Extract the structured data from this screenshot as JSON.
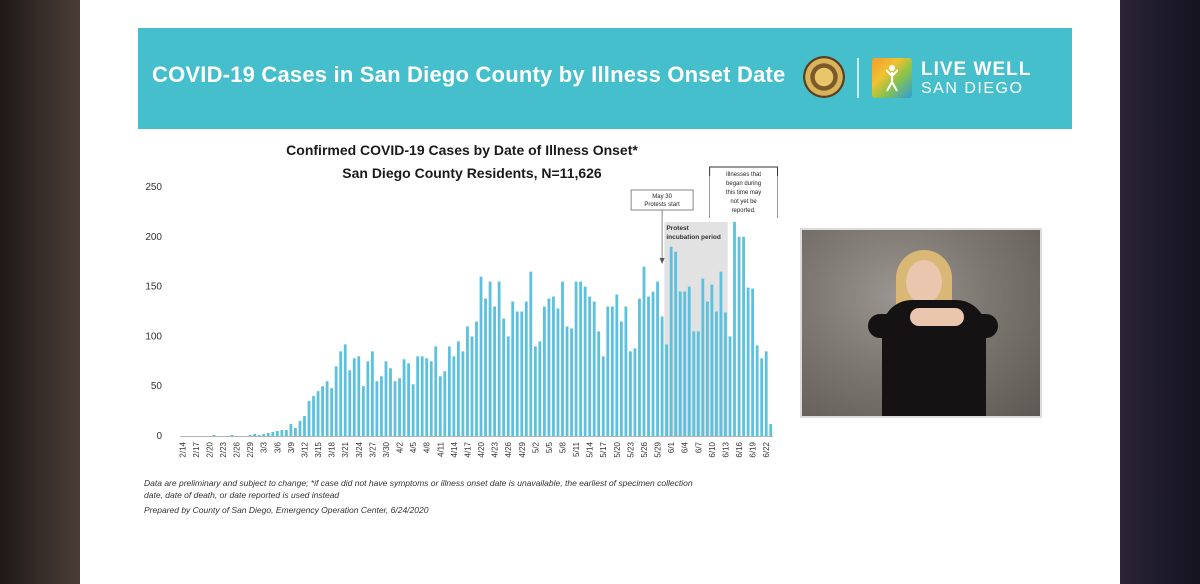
{
  "banner": {
    "title": "COVID-19 Cases in San Diego County by Illness Onset Date",
    "logo_line1": "LIVE WELL",
    "logo_line2": "SAN DIEGO",
    "color": "#45bfcc"
  },
  "chart_data": {
    "type": "bar",
    "title": "Confirmed COVID-19 Cases by Date of Illness Onset*",
    "subtitle": "San Diego County Residents, N=11,626",
    "ylim": [
      0,
      250
    ],
    "yticks": [
      0,
      50,
      100,
      150,
      200,
      250
    ],
    "bar_color": "#5cc1de",
    "tick_labels": [
      "2/14",
      "2/17",
      "2/20",
      "2/23",
      "2/26",
      "2/29",
      "3/3",
      "3/6",
      "3/9",
      "3/12",
      "3/15",
      "3/18",
      "3/21",
      "3/24",
      "3/27",
      "3/30",
      "4/2",
      "4/5",
      "4/8",
      "4/11",
      "4/14",
      "4/17",
      "4/20",
      "4/23",
      "4/26",
      "4/29",
      "5/2",
      "5/5",
      "5/8",
      "5/11",
      "5/14",
      "5/17",
      "5/20",
      "5/23",
      "5/26",
      "5/29",
      "6/1",
      "6/4",
      "6/7",
      "6/10",
      "6/13",
      "6/16",
      "6/19",
      "6/22"
    ],
    "start_date": "2/14",
    "values": [
      0,
      0,
      0,
      0,
      0,
      0,
      0,
      1,
      0,
      0,
      0,
      1,
      0,
      0,
      0,
      1,
      2,
      1,
      2,
      3,
      4,
      5,
      6,
      6,
      12,
      8,
      15,
      20,
      35,
      40,
      45,
      50,
      55,
      48,
      70,
      85,
      92,
      66,
      78,
      80,
      50,
      75,
      85,
      55,
      60,
      75,
      68,
      55,
      58,
      77,
      73,
      52,
      80,
      80,
      78,
      75,
      90,
      60,
      65,
      90,
      80,
      95,
      85,
      110,
      100,
      115,
      160,
      138,
      155,
      130,
      155,
      118,
      100,
      135,
      125,
      125,
      135,
      165,
      90,
      95,
      130,
      138,
      140,
      128,
      155,
      110,
      108,
      155,
      155,
      150,
      140,
      135,
      105,
      80,
      130,
      130,
      142,
      115,
      130,
      85,
      88,
      138,
      170,
      140,
      145,
      155,
      120,
      92,
      190,
      185,
      145,
      145,
      150,
      105,
      105,
      158,
      135,
      152,
      125,
      165,
      124,
      100,
      215,
      200,
      200,
      149,
      148,
      91,
      78,
      85,
      12
    ],
    "annotations": [
      {
        "text": "May 30 Protests start",
        "lines": [
          "May 30",
          "Protests start"
        ],
        "date": "5/30"
      },
      {
        "text": "Protest incubation period",
        "lines": [
          "Protest",
          "incubation period"
        ],
        "start": "5/31",
        "end": "6/13"
      },
      {
        "text": "Illnesses that began during this time may not yet be reported.",
        "lines": [
          "Illnesses that",
          "began during",
          "this time may",
          "not yet be",
          "reported."
        ],
        "start": "6/10",
        "end": "6/24"
      }
    ]
  },
  "footnotes": {
    "line1": "Data are preliminary and subject to change; *if case did not have symptoms or illness onset date is unavailable, the earliest of specimen collection",
    "line2": "date, date of death, or date reported is used instead",
    "line3": "Prepared by County of San Diego, Emergency Operation Center, 6/24/2020"
  }
}
